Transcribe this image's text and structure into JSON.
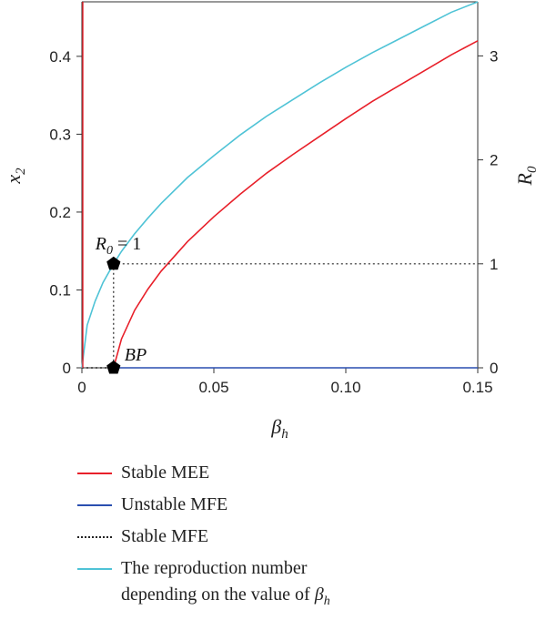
{
  "chart_data": {
    "type": "line",
    "x_axis": {
      "label": "β",
      "label_sub": "h",
      "range": [
        0,
        0.15
      ],
      "ticks": [
        0,
        0.05,
        0.1,
        0.15
      ],
      "tick_labels": [
        "0",
        "0.05",
        "0.10",
        "0.15"
      ]
    },
    "y_axis_left": {
      "label": "x",
      "label_sub": "2",
      "range": [
        0,
        0.47
      ],
      "ticks": [
        0,
        0.1,
        0.2,
        0.3,
        0.4
      ],
      "tick_labels": [
        "0",
        "0.1",
        "0.2",
        "0.3",
        "0.4"
      ]
    },
    "y_axis_right": {
      "label": "R",
      "label_sub": "0",
      "range": [
        0,
        3.52
      ],
      "ticks": [
        0,
        1,
        2,
        3
      ],
      "tick_labels": [
        "0",
        "1",
        "2",
        "3"
      ]
    },
    "series": [
      {
        "name": "Stable MEE",
        "color": "#e8202a",
        "style": "solid",
        "axis": "left",
        "x": [
          0.012,
          0.015,
          0.02,
          0.025,
          0.03,
          0.04,
          0.05,
          0.06,
          0.07,
          0.08,
          0.09,
          0.1,
          0.11,
          0.12,
          0.13,
          0.14,
          0.15
        ],
        "y": [
          0.0,
          0.037,
          0.074,
          0.101,
          0.124,
          0.162,
          0.194,
          0.223,
          0.25,
          0.274,
          0.297,
          0.32,
          0.342,
          0.362,
          0.382,
          0.402,
          0.42
        ]
      },
      {
        "name": "Unstable MFE",
        "color": "#2a4fb0",
        "style": "solid",
        "axis": "left",
        "x": [
          0.012,
          0.15
        ],
        "y": [
          0.0,
          0.0
        ]
      },
      {
        "name": "Stable MFE",
        "color": "#222222",
        "style": "dotted",
        "axis": "left",
        "x": [
          0.0,
          0.012
        ],
        "y": [
          0.0,
          0.0
        ]
      },
      {
        "name": "The reproduction number depending on the value of β_h",
        "color": "#4fc3d6",
        "style": "solid",
        "axis": "right",
        "x": [
          0.0,
          0.002,
          0.005,
          0.008,
          0.012,
          0.015,
          0.02,
          0.025,
          0.03,
          0.04,
          0.05,
          0.06,
          0.07,
          0.08,
          0.09,
          0.1,
          0.11,
          0.12,
          0.13,
          0.14,
          0.15
        ],
        "y": [
          0.0,
          0.41,
          0.64,
          0.82,
          1.0,
          1.12,
          1.29,
          1.44,
          1.58,
          1.83,
          2.04,
          2.24,
          2.42,
          2.58,
          2.74,
          2.89,
          3.03,
          3.16,
          3.29,
          3.42,
          3.52
        ]
      }
    ],
    "points": [
      {
        "label": "BP",
        "x": 0.012,
        "y": 0.0,
        "axis": "left"
      },
      {
        "label": "R_0 = 1",
        "x": 0.012,
        "y": 1.0,
        "axis": "right"
      }
    ],
    "annotations": {
      "bp": "BP",
      "r0_main": "R",
      "r0_sub": "0",
      "r0_rest": " = 1"
    },
    "reference_lines": [
      {
        "style": "dotted",
        "from": {
          "x": 0.012,
          "R0": 1
        },
        "to": {
          "x": 0.15,
          "R0": 1
        }
      },
      {
        "style": "dotted",
        "from": {
          "x": 0.012,
          "R0": 1
        },
        "to": {
          "x": 0.012,
          "R0": 0
        }
      }
    ]
  },
  "legend": {
    "items": [
      {
        "label": "Stable MEE",
        "color": "#e8202a",
        "style": "solid"
      },
      {
        "label": "Unstable MFE",
        "color": "#2a4fb0",
        "style": "solid"
      },
      {
        "label": "Stable MFE",
        "color": "#222222",
        "style": "dotted"
      },
      {
        "label_line1": "The reproduction number",
        "label_line2": "depending on the value of ",
        "label_symbol": "β",
        "label_sub": "h",
        "color": "#4fc3d6",
        "style": "solid"
      }
    ]
  }
}
